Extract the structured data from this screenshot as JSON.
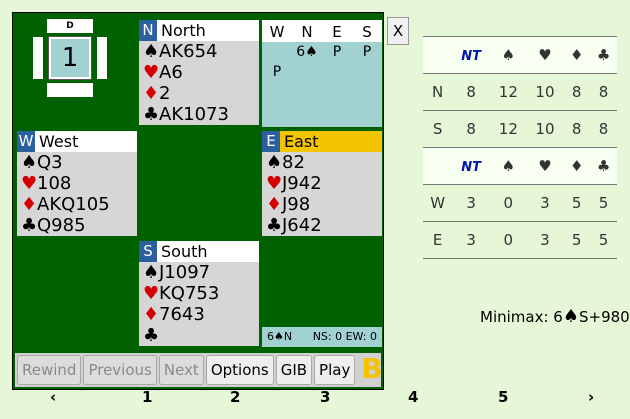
{
  "board": {
    "dealer_label": "D",
    "number": "1"
  },
  "hands": {
    "north": {
      "seat": "N",
      "name": "North",
      "spades": "AK654",
      "hearts": "A6",
      "diamonds": "2",
      "clubs": "AK1073"
    },
    "west": {
      "seat": "W",
      "name": "West",
      "spades": "Q3",
      "hearts": "108",
      "diamonds": "AKQ105",
      "clubs": "Q985"
    },
    "east": {
      "seat": "E",
      "name": "East",
      "spades": "82",
      "hearts": "J942",
      "diamonds": "J98",
      "clubs": "J642"
    },
    "south": {
      "seat": "S",
      "name": "South",
      "spades": "J1097",
      "hearts": "KQ753",
      "diamonds": "7643",
      "clubs": ""
    }
  },
  "auction": {
    "columns": [
      "W",
      "N",
      "E",
      "S"
    ],
    "rows": [
      [
        "",
        "6♠",
        "P",
        "P"
      ],
      [
        "P",
        "",
        "",
        ""
      ]
    ]
  },
  "close_label": "X",
  "contract_bar": {
    "contract": "6♠N",
    "score": "NS: 0 EW: 0"
  },
  "buttons": {
    "rewind": "Rewind",
    "previous": "Previous",
    "next": "Next",
    "options": "Options",
    "gib": "GIB",
    "play": "Play",
    "logo": "B"
  },
  "nav": {
    "prev_arrow": "‹",
    "pages": [
      "1",
      "2",
      "3",
      "4",
      "5"
    ],
    "next_arrow": "›"
  },
  "double_dummy": {
    "header_nt": "NT",
    "ns_rows": [
      {
        "seat": "N",
        "values": [
          "8",
          "12",
          "10",
          "8",
          "8"
        ]
      },
      {
        "seat": "S",
        "values": [
          "8",
          "12",
          "10",
          "8",
          "8"
        ]
      }
    ],
    "ew_rows": [
      {
        "seat": "W",
        "values": [
          "3",
          "0",
          "3",
          "5",
          "5"
        ]
      },
      {
        "seat": "E",
        "values": [
          "3",
          "0",
          "3",
          "5",
          "5"
        ]
      }
    ]
  },
  "minimax": {
    "prefix": "Minimax: 6",
    "suffix": "S+980"
  },
  "colors": {
    "felt": "#006100",
    "seat_badge": "#2b5f9e",
    "east_highlight": "#f5c400",
    "auction_bg": "#a2d1d1",
    "heart": "#d40000",
    "diamond_dd": "#ff4a00",
    "notrump": "#0017aa",
    "page_bg": "#e6f7d8"
  }
}
